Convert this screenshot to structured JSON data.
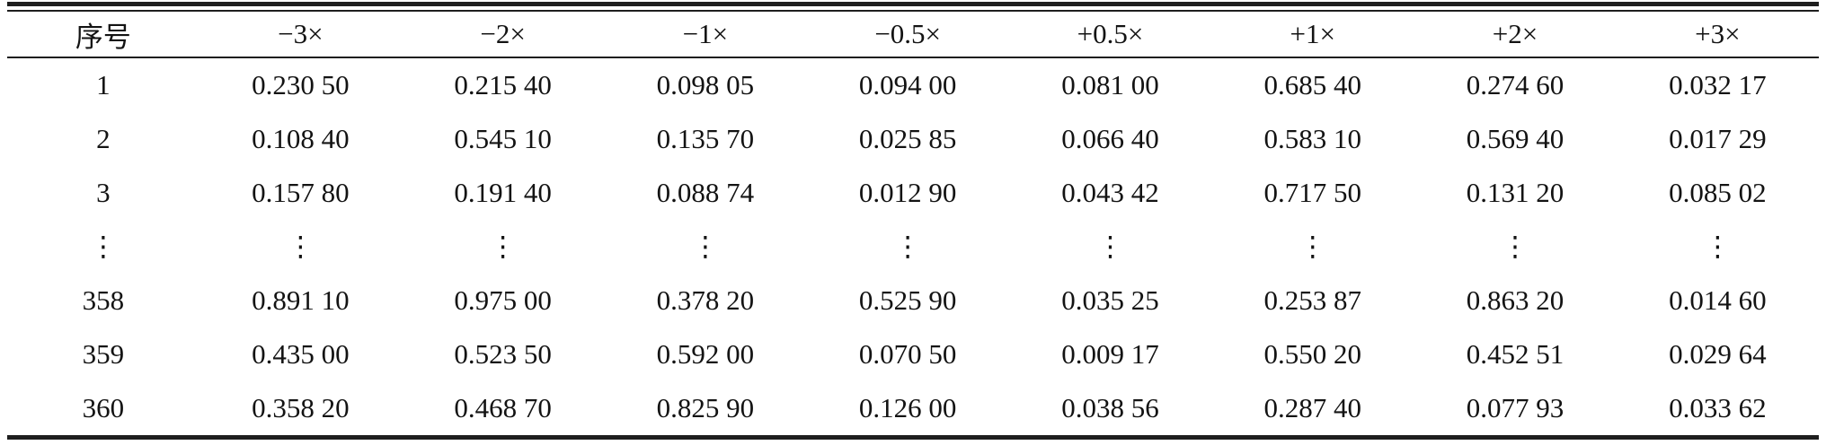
{
  "page": {
    "background": "#ffffff",
    "text_color": "#131313",
    "rule_color": "#1e1e1e"
  },
  "chart_data": {
    "type": "table",
    "columns": [
      "序号",
      "−3×",
      "−2×",
      "−1×",
      "−0.5×",
      "+0.5×",
      "+1×",
      "+2×",
      "+3×"
    ],
    "rows": [
      [
        "1",
        "0.230 50",
        "0.215 40",
        "0.098 05",
        "0.094 00",
        "0.081 00",
        "0.685 40",
        "0.274 60",
        "0.032 17"
      ],
      [
        "2",
        "0.108 40",
        "0.545 10",
        "0.135 70",
        "0.025 85",
        "0.066 40",
        "0.583 10",
        "0.569 40",
        "0.017 29"
      ],
      [
        "3",
        "0.157 80",
        "0.191 40",
        "0.088 74",
        "0.012 90",
        "0.043 42",
        "0.717 50",
        "0.131 20",
        "0.085 02"
      ],
      [
        "⋮",
        "⋮",
        "⋮",
        "⋮",
        "⋮",
        "⋮",
        "⋮",
        "⋮",
        "⋮"
      ],
      [
        "358",
        "0.891 10",
        "0.975 00",
        "0.378 20",
        "0.525 90",
        "0.035 25",
        "0.253 87",
        "0.863 20",
        "0.014 60"
      ],
      [
        "359",
        "0.435 00",
        "0.523 50",
        "0.592 00",
        "0.070 50",
        "0.009 17",
        "0.550 20",
        "0.452 51",
        "0.029 64"
      ],
      [
        "360",
        "0.358 20",
        "0.468 70",
        "0.825 90",
        "0.126 00",
        "0.038 56",
        "0.287 40",
        "0.077 93",
        "0.033 62"
      ]
    ]
  }
}
